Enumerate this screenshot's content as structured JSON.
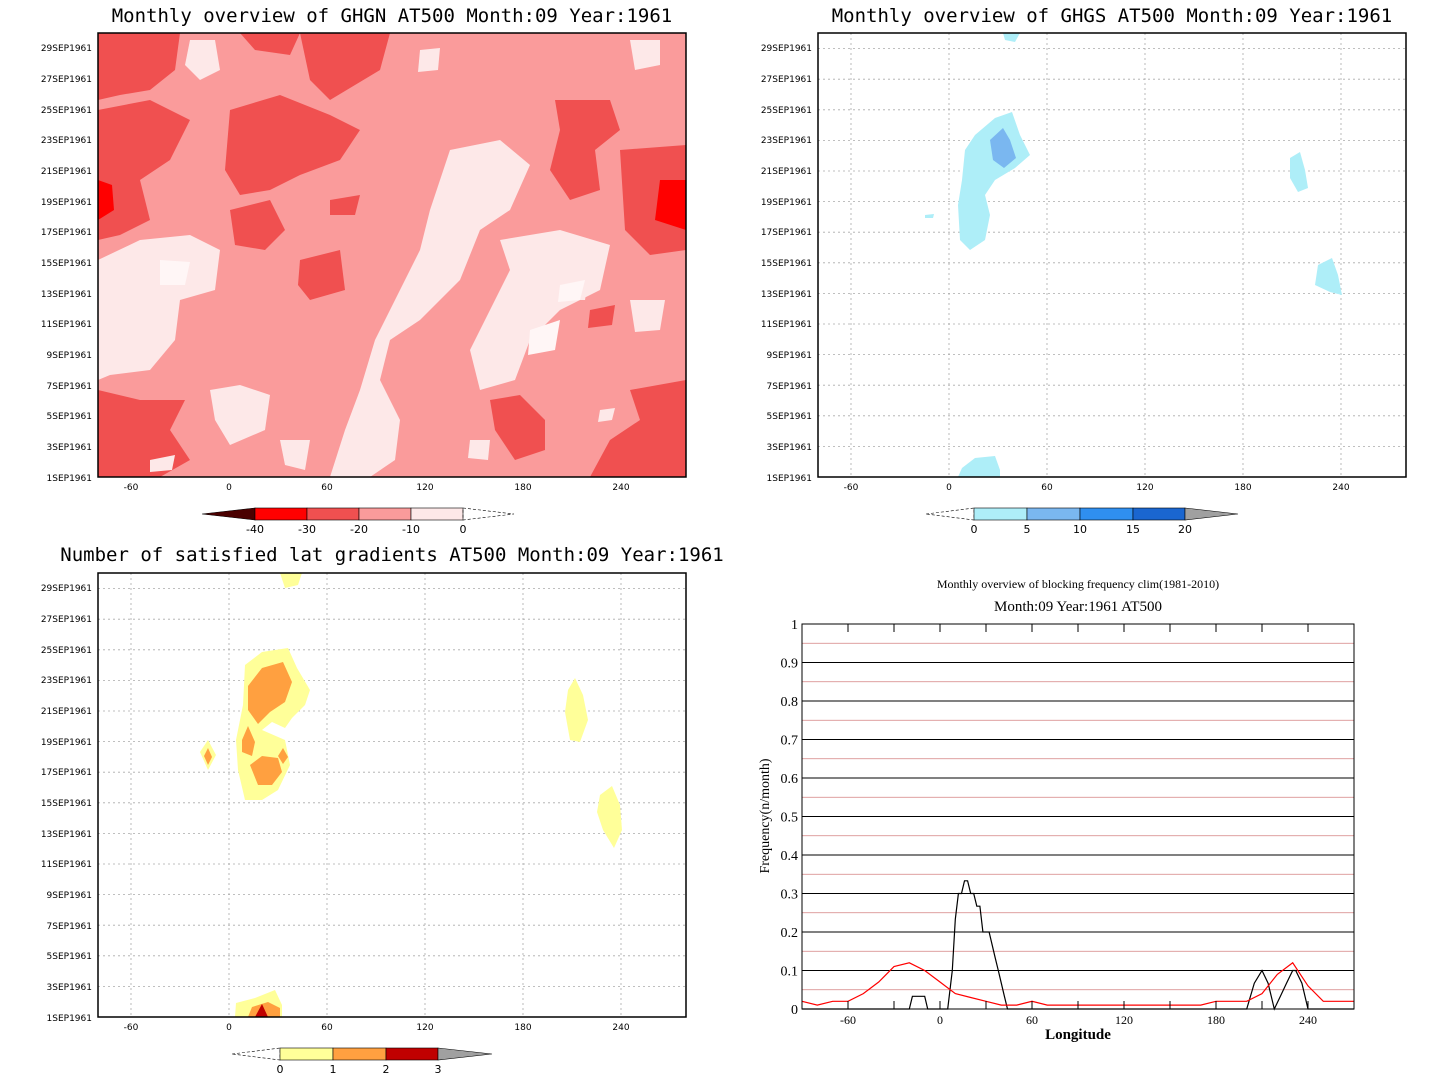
{
  "panels": {
    "ghgn": {
      "title": "Monthly overview of GHGN AT500 Month:09 Year:1961",
      "colorbar": {
        "labels": [
          "-40",
          "-30",
          "-20",
          "-10",
          "0"
        ],
        "colors": [
          "#4a0000",
          "#ff0000",
          "#f05050",
          "#fa9b9b",
          "#fde8e8"
        ]
      }
    },
    "ghgs": {
      "title": "Monthly overview of GHGS AT500 Month:09 Year:1961",
      "colorbar": {
        "labels": [
          "0",
          "5",
          "10",
          "15",
          "20"
        ],
        "colors": [
          "#aeeef8",
          "#7ab7f0",
          "#2f8ff0",
          "#1a66d0",
          "#a0a0a0"
        ]
      }
    },
    "lat": {
      "title": "Number of satisfied lat gradients AT500 Month:09 Year:1961",
      "colorbar": {
        "labels": [
          "0",
          "1",
          "2",
          "3"
        ],
        "colors": [
          "#ffff99",
          "#ffa040",
          "#c00000",
          "#a0a0a0"
        ]
      }
    }
  },
  "time_axis": [
    "1SEP1961",
    "3SEP1961",
    "5SEP1961",
    "7SEP1961",
    "9SEP1961",
    "11SEP1961",
    "13SEP1961",
    "15SEP1961",
    "17SEP1961",
    "19SEP1961",
    "21SEP1961",
    "23SEP1961",
    "25SEP1961",
    "27SEP1961",
    "29SEP1961"
  ],
  "lon_ticks": [
    "-60",
    "0",
    "60",
    "120",
    "180",
    "240"
  ],
  "chart_data": [
    {
      "type": "heatmap",
      "title": "Monthly overview of GHGN AT500 Month:09 Year:1961",
      "x_range": [
        -90,
        270
      ],
      "y_range": [
        "1SEP1961",
        "30SEP1961"
      ],
      "levels": [
        -40,
        -30,
        -20,
        -10,
        0
      ],
      "colors": [
        "#4a0000",
        "#ff0000",
        "#f05050",
        "#fa9b9b",
        "#fde8e8"
      ]
    },
    {
      "type": "heatmap",
      "title": "Monthly overview of GHGS AT500 Month:09 Year:1961",
      "x_range": [
        -90,
        270
      ],
      "y_range": [
        "1SEP1961",
        "30SEP1961"
      ],
      "levels": [
        0,
        5,
        10,
        15,
        20
      ],
      "colors": [
        "#aeeef8",
        "#7ab7f0",
        "#2f8ff0",
        "#1a66d0",
        "#a0a0a0"
      ]
    },
    {
      "type": "heatmap",
      "title": "Number of satisfied lat gradients AT500 Month:09 Year:1961",
      "x_range": [
        -90,
        270
      ],
      "y_range": [
        "1SEP1961",
        "30SEP1961"
      ],
      "levels": [
        0,
        1,
        2,
        3
      ],
      "colors": [
        "#ffff99",
        "#ffa040",
        "#c00000",
        "#a0a0a0"
      ]
    },
    {
      "type": "line",
      "title": "Monthly overview of blocking frequency clim(1981-2010)",
      "subtitle": "Month:09 Year:1961  AT500",
      "xlabel": "Longitude",
      "ylabel": "Frequency(n/month)",
      "xlim": [
        -90,
        270
      ],
      "ylim": [
        0,
        1
      ],
      "x_ticks": [
        -60,
        0,
        60,
        120,
        180,
        240
      ],
      "y_ticks": [
        "0",
        "0.1",
        "0.2",
        "0.3",
        "0.4",
        "0.5",
        "0.6",
        "0.7",
        "0.8",
        "0.9",
        "1"
      ],
      "grid": true,
      "series": [
        {
          "color": "#000000",
          "x": [
            -90,
            -20,
            -18,
            -15,
            -10,
            -8,
            0,
            5,
            8,
            10,
            12,
            14,
            16,
            18,
            20,
            22,
            24,
            26,
            28,
            30,
            32,
            34,
            36,
            38,
            40,
            42,
            44,
            46,
            48,
            200,
            205,
            210,
            214,
            218,
            222,
            226,
            230,
            232,
            236,
            240,
            245,
            270
          ],
          "y": [
            0,
            0,
            0.033,
            0.033,
            0.033,
            0,
            0,
            0,
            0.1,
            0.233,
            0.3,
            0.3,
            0.333,
            0.333,
            0.3,
            0.3,
            0.267,
            0.267,
            0.2,
            0.2,
            0.2,
            0.167,
            0.133,
            0.1,
            0.067,
            0.033,
            0,
            0,
            0,
            0,
            0.067,
            0.1,
            0.067,
            0,
            0.033,
            0.067,
            0.1,
            0.1,
            0.067,
            0,
            0,
            0
          ]
        },
        {
          "color": "#ff0000",
          "x": [
            -90,
            -80,
            -70,
            -60,
            -50,
            -40,
            -30,
            -20,
            -10,
            0,
            10,
            20,
            30,
            40,
            50,
            60,
            70,
            80,
            90,
            100,
            110,
            120,
            130,
            140,
            150,
            160,
            170,
            180,
            190,
            200,
            210,
            220,
            230,
            240,
            250,
            260,
            270
          ],
          "y": [
            0.02,
            0.01,
            0.02,
            0.02,
            0.04,
            0.07,
            0.11,
            0.12,
            0.1,
            0.07,
            0.04,
            0.03,
            0.02,
            0.01,
            0.01,
            0.02,
            0.01,
            0.01,
            0.01,
            0.01,
            0.01,
            0.01,
            0.01,
            0.01,
            0.01,
            0.01,
            0.01,
            0.02,
            0.02,
            0.02,
            0.04,
            0.09,
            0.12,
            0.06,
            0.02,
            0.02,
            0.02
          ]
        }
      ]
    }
  ]
}
